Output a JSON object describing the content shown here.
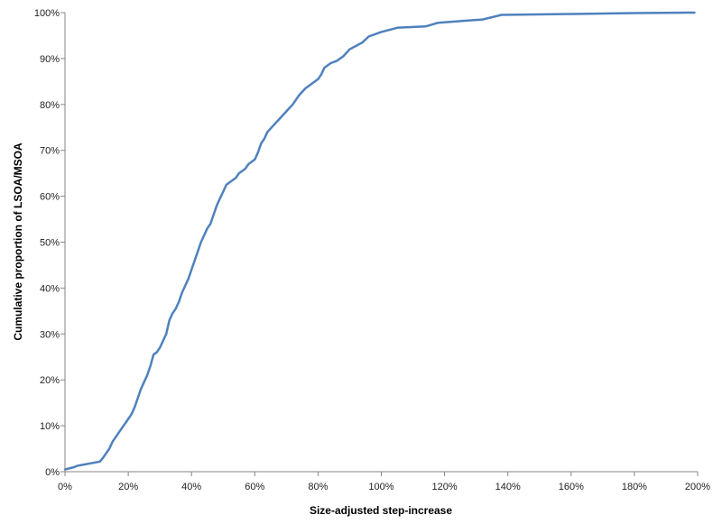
{
  "chart_data": {
    "type": "line",
    "title": "",
    "xlabel": "Size-adjusted step-increase",
    "ylabel": "Cumulative proportion of LSOA/MSOA",
    "xlim": [
      0,
      2.0
    ],
    "ylim": [
      0,
      1.0
    ],
    "x_ticks": [
      "0%",
      "20%",
      "40%",
      "60%",
      "80%",
      "100%",
      "120%",
      "140%",
      "160%",
      "180%",
      "200%"
    ],
    "y_ticks": [
      "0%",
      "10%",
      "20%",
      "30%",
      "40%",
      "50%",
      "60%",
      "70%",
      "80%",
      "90%",
      "100%"
    ],
    "grid": false,
    "legend": "none",
    "colors": {
      "series": "#4f81bd",
      "axis": "#868686"
    },
    "series": [
      {
        "x": [
          0.0,
          0.03,
          0.04,
          0.08,
          0.11,
          0.12,
          0.13,
          0.14,
          0.15,
          0.16,
          0.17,
          0.18,
          0.19,
          0.2,
          0.21,
          0.22,
          0.23,
          0.24,
          0.25,
          0.26,
          0.27,
          0.28,
          0.29,
          0.3,
          0.31,
          0.32,
          0.33,
          0.34,
          0.35,
          0.36,
          0.37,
          0.38,
          0.39,
          0.4,
          0.41,
          0.42,
          0.43,
          0.44,
          0.45,
          0.46,
          0.47,
          0.48,
          0.49,
          0.5,
          0.51,
          0.52,
          0.54,
          0.55,
          0.57,
          0.58,
          0.6,
          0.61,
          0.62,
          0.63,
          0.64,
          0.66,
          0.68,
          0.7,
          0.72,
          0.74,
          0.76,
          0.78,
          0.8,
          0.81,
          0.82,
          0.84,
          0.86,
          0.88,
          0.9,
          0.94,
          0.96,
          1.0,
          1.04,
          1.05,
          1.14,
          1.18,
          1.32,
          1.38,
          1.6,
          1.8,
          1.99
        ],
        "y": [
          0.005,
          0.01,
          0.013,
          0.018,
          0.022,
          0.03,
          0.04,
          0.05,
          0.065,
          0.075,
          0.085,
          0.095,
          0.105,
          0.115,
          0.125,
          0.14,
          0.16,
          0.18,
          0.195,
          0.21,
          0.23,
          0.255,
          0.26,
          0.27,
          0.285,
          0.3,
          0.33,
          0.345,
          0.355,
          0.37,
          0.39,
          0.405,
          0.42,
          0.44,
          0.46,
          0.48,
          0.5,
          0.515,
          0.53,
          0.54,
          0.56,
          0.58,
          0.595,
          0.61,
          0.625,
          0.63,
          0.64,
          0.65,
          0.66,
          0.67,
          0.68,
          0.695,
          0.715,
          0.725,
          0.74,
          0.755,
          0.77,
          0.785,
          0.8,
          0.82,
          0.835,
          0.845,
          0.855,
          0.865,
          0.88,
          0.89,
          0.895,
          0.905,
          0.92,
          0.935,
          0.948,
          0.958,
          0.965,
          0.967,
          0.97,
          0.978,
          0.985,
          0.995,
          0.997,
          0.999,
          1.0
        ]
      }
    ]
  }
}
